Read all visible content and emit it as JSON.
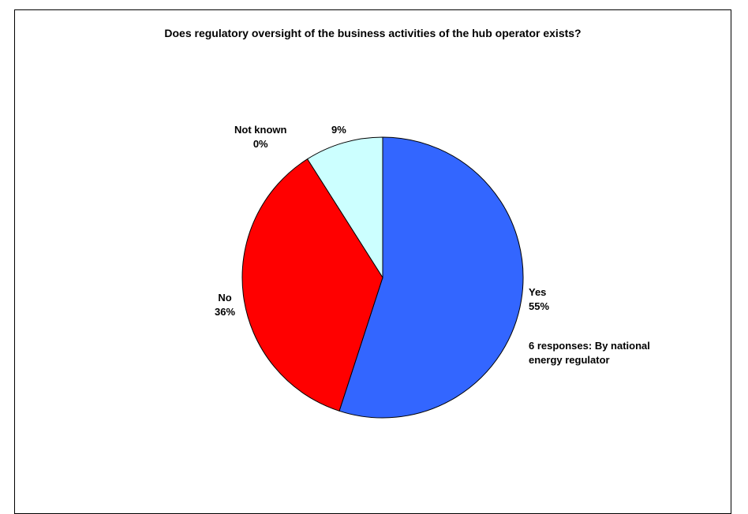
{
  "chart_data": {
    "type": "pie",
    "title": "Does regulatory oversight of the business activities of the hub operator exists?",
    "slices": [
      {
        "label": "Yes",
        "value": 55,
        "value_label": "55%",
        "color": "#3366ff"
      },
      {
        "label": "No",
        "value": 36,
        "value_label": "36%",
        "color": "#ff0000"
      },
      {
        "label": "Not known",
        "value": 0,
        "value_label": "0%",
        "color": "#ffffff"
      },
      {
        "label": "",
        "value": 9,
        "value_label": "9%",
        "color": "#ccffff"
      }
    ],
    "annotations": [
      {
        "line1": "6 responses: By national",
        "line2": "energy regulator"
      }
    ],
    "legend": "none"
  }
}
